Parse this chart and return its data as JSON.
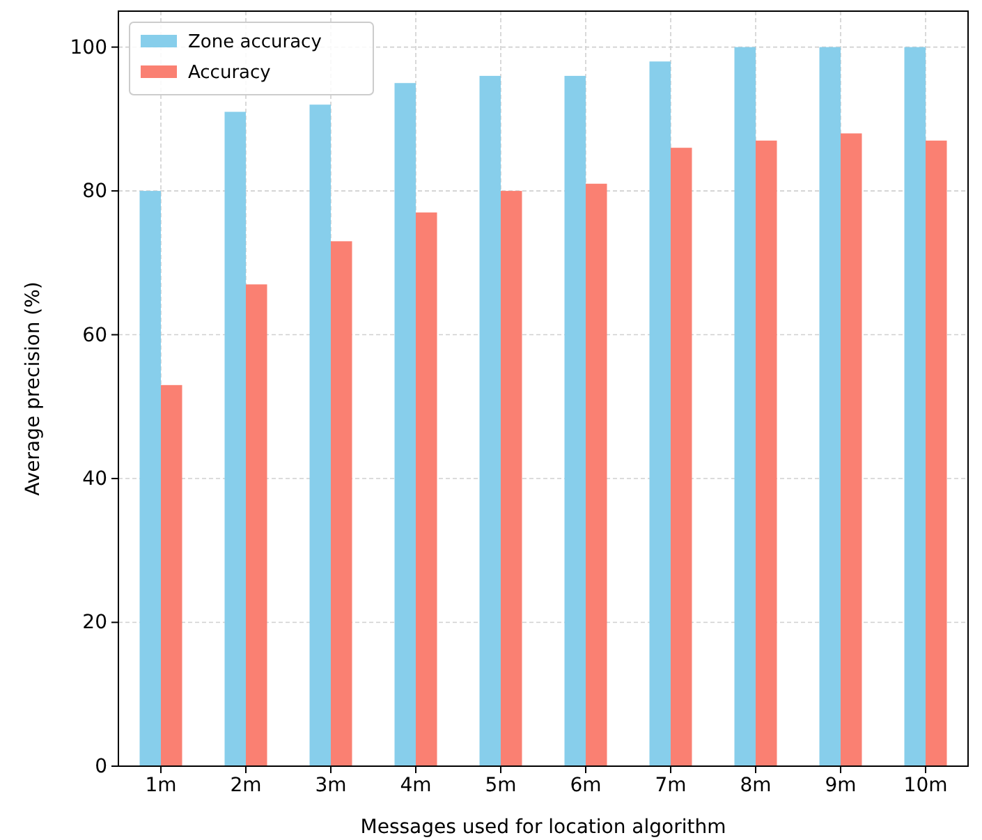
{
  "chart_data": {
    "type": "bar",
    "xlabel": "Messages used for location algorithm",
    "ylabel": "Average precision (%)",
    "categories": [
      "1m",
      "2m",
      "3m",
      "4m",
      "5m",
      "6m",
      "7m",
      "8m",
      "9m",
      "10m"
    ],
    "series": [
      {
        "name": "Zone accuracy",
        "color": "#87ceeb",
        "values": [
          80,
          91,
          92,
          95,
          96,
          96,
          98,
          100,
          100,
          100
        ]
      },
      {
        "name": "Accuracy",
        "color": "#fa8072",
        "values": [
          53,
          67,
          73,
          77,
          80,
          81,
          86,
          87,
          88,
          87
        ]
      }
    ],
    "ylim": [
      0,
      105
    ],
    "yticks": [
      0,
      20,
      40,
      60,
      80,
      100
    ],
    "grid": true,
    "legend": "top left"
  }
}
